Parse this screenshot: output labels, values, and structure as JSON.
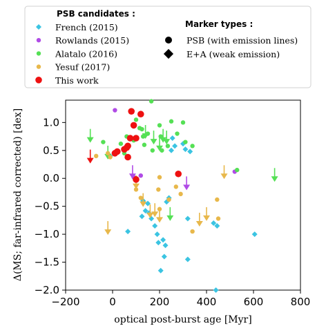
{
  "chart_data": {
    "type": "scatter",
    "xlabel": "optical post-burst age [Myr]",
    "ylabel": "Δ(MS; far-infrared corrected) [dex]",
    "xlim": [
      -200,
      800
    ],
    "ylim": [
      -2.0,
      1.4
    ],
    "xticks": [
      -200,
      0,
      200,
      400,
      600,
      800
    ],
    "yticks": [
      -2.0,
      -1.5,
      -1.0,
      -0.5,
      0.0,
      0.5,
      1.0
    ],
    "xtick_labels": [
      "−200",
      "0",
      "200",
      "400",
      "600",
      "800"
    ],
    "ytick_labels": [
      "−2.0",
      "−1.5",
      "−1.0",
      "−0.5",
      "0.0",
      "0.5",
      "1.0"
    ],
    "grid": false,
    "legend": {
      "placement": "top",
      "candidates_title": "PSB candidates :",
      "marker_title": "Marker types :",
      "marker_types": [
        {
          "symbol": "circle",
          "label": "PSB (with emission lines)"
        },
        {
          "symbol": "diamond",
          "label": "E+A (weak emission)"
        }
      ]
    },
    "series": [
      {
        "name": "French (2015)",
        "color": "#3bc4e2",
        "marker": "diamond",
        "points": [
          [
            -10,
            0.4
          ],
          [
            65,
            -0.95
          ],
          [
            125,
            -0.68
          ],
          [
            130,
            -0.4
          ],
          [
            140,
            -0.58
          ],
          [
            150,
            -0.45
          ],
          [
            155,
            -0.62
          ],
          [
            165,
            -0.72
          ],
          [
            180,
            -0.85
          ],
          [
            190,
            -1.0
          ],
          [
            195,
            -1.15
          ],
          [
            205,
            -1.65
          ],
          [
            215,
            -1.1
          ],
          [
            220,
            -1.4
          ],
          [
            225,
            -1.2
          ],
          [
            230,
            -0.42
          ],
          [
            240,
            -0.35
          ],
          [
            250,
            0.5
          ],
          [
            255,
            0.72
          ],
          [
            265,
            0.58
          ],
          [
            300,
            0.62
          ],
          [
            310,
            0.52
          ],
          [
            320,
            -0.72
          ],
          [
            320,
            -1.45
          ],
          [
            330,
            0.48
          ],
          [
            430,
            -0.8
          ],
          [
            440,
            -2.0
          ],
          [
            445,
            -0.85
          ],
          [
            605,
            -1.0
          ]
        ]
      },
      {
        "name": "Rowlands (2015)",
        "color": "#b04be6",
        "marker": "circle",
        "points": [
          [
            10,
            1.22
          ],
          [
            90,
            0.02
          ],
          [
            120,
            0.05
          ],
          [
            520,
            0.12
          ]
        ],
        "upper_limits": [
          [
            85,
            0.0
          ],
          [
            315,
            -0.2
          ]
        ]
      },
      {
        "name": "Alatalo (2016)",
        "color": "#55e055",
        "marker": "circle",
        "points": [
          [
            -40,
            0.65
          ],
          [
            35,
            0.62
          ],
          [
            50,
            0.45
          ],
          [
            60,
            0.75
          ],
          [
            90,
            0.68
          ],
          [
            100,
            1.05
          ],
          [
            115,
            0.9
          ],
          [
            125,
            0.88
          ],
          [
            130,
            0.75
          ],
          [
            135,
            0.6
          ],
          [
            150,
            0.8
          ],
          [
            165,
            1.38
          ],
          [
            170,
            0.5
          ],
          [
            200,
            0.95
          ],
          [
            205,
            0.75
          ],
          [
            210,
            0.5
          ],
          [
            235,
            0.58
          ],
          [
            250,
            1.02
          ],
          [
            275,
            0.8
          ],
          [
            300,
            1.0
          ],
          [
            310,
            0.65
          ],
          [
            340,
            0.58
          ],
          [
            530,
            0.15
          ]
        ],
        "upper_limits": [
          [
            -95,
            0.65
          ],
          [
            -20,
            0.35
          ],
          [
            140,
            0.72
          ],
          [
            175,
            0.62
          ],
          [
            200,
            0.5
          ],
          [
            215,
            0.65
          ],
          [
            230,
            0.62
          ],
          [
            245,
            -0.75
          ],
          [
            690,
            -0.05
          ]
        ]
      },
      {
        "name": "Yesuf (2017)",
        "color": "#e8b84b",
        "marker": "circle",
        "points": [
          [
            -70,
            0.4
          ],
          [
            -20,
            0.45
          ],
          [
            -10,
            0.38
          ],
          [
            100,
            -0.2
          ],
          [
            120,
            -0.35
          ],
          [
            195,
            -0.2
          ],
          [
            200,
            0.02
          ],
          [
            200,
            -0.55
          ],
          [
            240,
            -0.38
          ],
          [
            270,
            -0.15
          ],
          [
            290,
            -0.28
          ],
          [
            340,
            -0.95
          ],
          [
            445,
            -0.38
          ],
          [
            450,
            -0.72
          ]
        ],
        "upper_limits": [
          [
            -20,
            -1.0
          ],
          [
            100,
            -0.18
          ],
          [
            130,
            -0.5
          ],
          [
            160,
            -0.7
          ],
          [
            180,
            -0.68
          ],
          [
            200,
            -0.78
          ],
          [
            370,
            -0.85
          ],
          [
            400,
            -0.75
          ],
          [
            475,
            0.0
          ]
        ]
      },
      {
        "name": "This work",
        "color": "#ee1111",
        "marker": "circle",
        "points": [
          [
            10,
            0.45
          ],
          [
            20,
            0.48
          ],
          [
            50,
            0.52
          ],
          [
            60,
            0.55
          ],
          [
            65,
            0.58
          ],
          [
            65,
            0.38
          ],
          [
            75,
            0.72
          ],
          [
            80,
            1.2
          ],
          [
            90,
            0.95
          ],
          [
            100,
            0.72
          ],
          [
            100,
            -0.02
          ],
          [
            120,
            1.15
          ],
          [
            280,
            0.08
          ]
        ],
        "upper_limits": [
          [
            -95,
            0.28
          ]
        ]
      }
    ]
  }
}
